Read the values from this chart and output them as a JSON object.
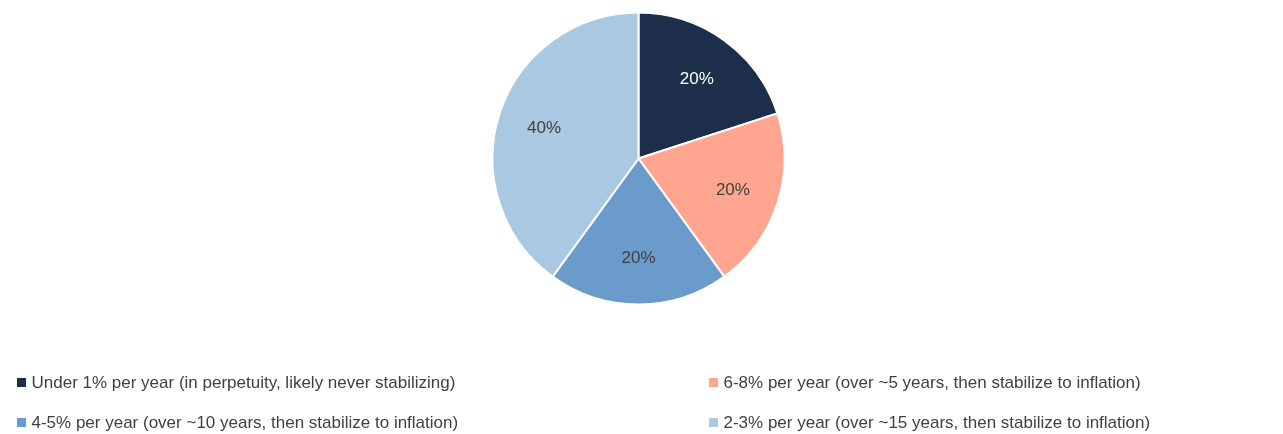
{
  "chart_data": {
    "type": "pie",
    "categories": [
      "Under 1% per year (in perpetuity, likely never stabilizing)",
      "6-8% per year (over ~5 years, then stabilize to inflation)",
      "4-5% per year (over ~10 years, then stabilize to inflation)",
      "2-3% per year (over ~15 years, then stabilize to inflation)"
    ],
    "values": [
      20,
      20,
      20,
      40
    ],
    "colors": [
      "#1c2e4a",
      "#ffa590",
      "#6a9bcb",
      "#a9c8e1"
    ],
    "value_labels": [
      "20%",
      "20%",
      "20%",
      "40%"
    ],
    "legend": "bottom"
  }
}
